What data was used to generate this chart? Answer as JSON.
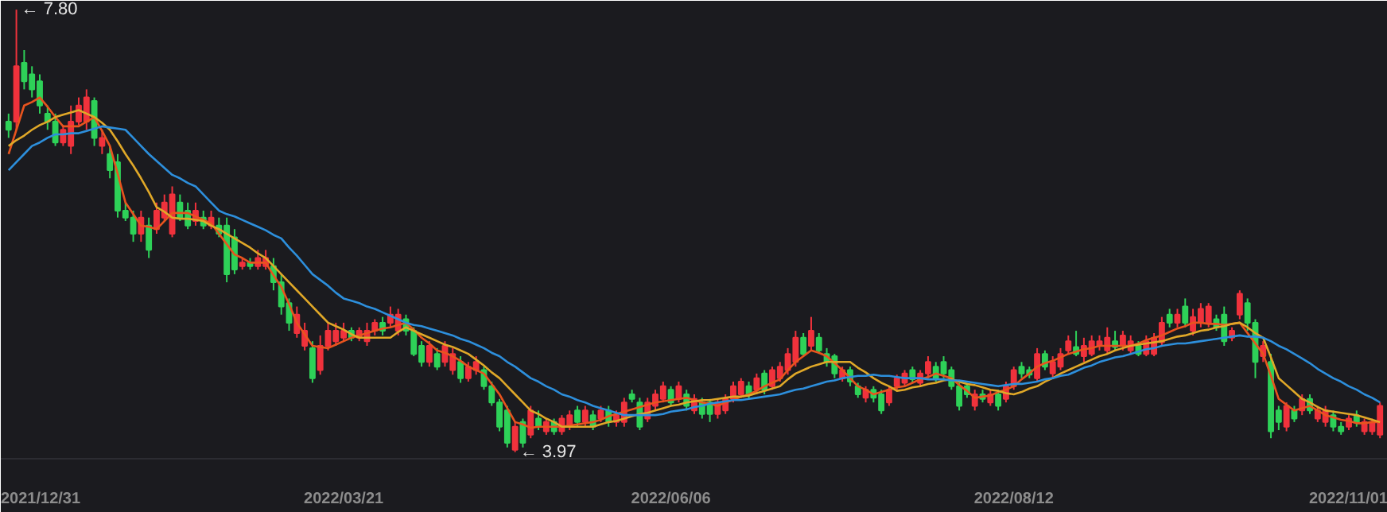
{
  "chart_data": {
    "type": "candlestick",
    "categories": [
      null,
      null,
      null,
      null,
      "2021/12/31",
      null,
      null,
      null,
      null,
      null,
      null,
      null,
      null,
      null,
      null,
      null,
      null,
      null,
      null,
      null,
      null,
      null,
      null,
      null,
      null,
      null,
      null,
      null,
      null,
      null,
      null,
      null,
      null,
      null,
      null,
      null,
      null,
      null,
      null,
      null,
      null,
      null,
      null,
      "2022/03/21",
      null,
      null,
      null,
      null,
      null,
      null,
      null,
      null,
      null,
      null,
      null,
      null,
      null,
      null,
      null,
      null,
      null,
      null,
      null,
      null,
      null,
      null,
      null,
      null,
      null,
      null,
      null,
      null,
      null,
      null,
      null,
      null,
      null,
      null,
      null,
      null,
      null,
      null,
      null,
      null,
      null,
      "2022/06/06",
      null,
      null,
      null,
      null,
      null,
      null,
      null,
      null,
      null,
      null,
      null,
      null,
      null,
      null,
      null,
      null,
      null,
      null,
      null,
      null,
      null,
      null,
      null,
      null,
      null,
      null,
      null,
      null,
      null,
      null,
      null,
      null,
      null,
      null,
      null,
      null,
      null,
      null,
      null,
      null,
      null,
      null,
      null,
      "2022/08/12",
      null,
      null,
      null,
      null,
      null,
      null,
      null,
      null,
      null,
      null,
      null,
      null,
      null,
      null,
      null,
      null,
      null,
      null,
      null,
      null,
      null,
      null,
      null,
      null,
      null,
      null,
      null,
      null,
      null,
      null,
      null,
      null,
      null,
      null,
      null,
      null,
      null,
      null,
      null,
      null,
      null,
      null,
      "2022/11/01",
      null,
      null,
      null,
      null
    ],
    "ohlc": [
      [
        6.83,
        6.9,
        6.69,
        6.76
      ],
      [
        6.83,
        7.8,
        6.76,
        7.31
      ],
      [
        7.34,
        7.45,
        7.11,
        7.18
      ],
      [
        7.24,
        7.31,
        7.04,
        7.11
      ],
      [
        7.18,
        7.24,
        6.9,
        6.97
      ],
      [
        6.9,
        6.97,
        6.76,
        6.83
      ],
      [
        6.83,
        6.9,
        6.62,
        6.65
      ],
      [
        6.65,
        6.8,
        6.62,
        6.76
      ],
      [
        6.62,
        6.97,
        6.55,
        6.83
      ],
      [
        6.83,
        7.04,
        6.8,
        6.97
      ],
      [
        6.83,
        7.11,
        6.76,
        7.04
      ],
      [
        7.01,
        7.04,
        6.62,
        6.69
      ],
      [
        6.62,
        6.76,
        6.55,
        6.69
      ],
      [
        6.55,
        6.62,
        6.34,
        6.41
      ],
      [
        6.48,
        6.55,
        6.0,
        6.06
      ],
      [
        6.06,
        6.13,
        5.97,
        6.0
      ],
      [
        6.0,
        6.06,
        5.79,
        5.86
      ],
      [
        5.86,
        6.06,
        5.79,
        6.0
      ],
      [
        5.93,
        6.0,
        5.65,
        5.72
      ],
      [
        5.9,
        6.13,
        5.86,
        6.06
      ],
      [
        6.0,
        6.2,
        5.97,
        6.13
      ],
      [
        5.86,
        6.27,
        5.83,
        6.2
      ],
      [
        6.13,
        6.2,
        5.97,
        6.0
      ],
      [
        6.06,
        6.13,
        5.9,
        5.93
      ],
      [
        5.97,
        6.13,
        5.93,
        6.06
      ],
      [
        6.0,
        6.06,
        5.9,
        5.93
      ],
      [
        5.93,
        6.06,
        5.9,
        6.0
      ],
      [
        5.93,
        6.0,
        5.83,
        5.86
      ],
      [
        5.93,
        6.0,
        5.44,
        5.51
      ],
      [
        5.83,
        5.9,
        5.51,
        5.55
      ],
      [
        5.58,
        5.65,
        5.55,
        5.61
      ],
      [
        5.61,
        5.65,
        5.55,
        5.58
      ],
      [
        5.58,
        5.72,
        5.55,
        5.65
      ],
      [
        5.58,
        5.72,
        5.55,
        5.65
      ],
      [
        5.58,
        5.65,
        5.37,
        5.44
      ],
      [
        5.44,
        5.51,
        5.16,
        5.23
      ],
      [
        5.26,
        5.3,
        5.02,
        5.09
      ],
      [
        5.0,
        5.23,
        4.96,
        5.16
      ],
      [
        4.89,
        5.09,
        4.85,
        5.02
      ],
      [
        4.87,
        4.93,
        4.57,
        4.61
      ],
      [
        4.68,
        4.98,
        4.64,
        4.89
      ],
      [
        4.89,
        5.09,
        4.85,
        5.02
      ],
      [
        4.93,
        5.09,
        4.89,
        5.02
      ],
      [
        4.96,
        5.09,
        4.93,
        5.02
      ],
      [
        5.02,
        5.05,
        4.93,
        4.96
      ],
      [
        4.96,
        5.05,
        4.93,
        5.02
      ],
      [
        4.93,
        5.09,
        4.89,
        5.02
      ],
      [
        5.02,
        5.12,
        4.98,
        5.09
      ],
      [
        5.09,
        5.14,
        4.98,
        5.02
      ],
      [
        5.09,
        5.23,
        5.05,
        5.16
      ],
      [
        5.02,
        5.21,
        4.98,
        5.16
      ],
      [
        5.12,
        5.16,
        4.98,
        5.02
      ],
      [
        5.02,
        5.05,
        4.8,
        4.82
      ],
      [
        4.89,
        4.93,
        4.71,
        4.75
      ],
      [
        4.75,
        4.93,
        4.71,
        4.89
      ],
      [
        4.82,
        4.87,
        4.68,
        4.71
      ],
      [
        4.75,
        4.93,
        4.71,
        4.89
      ],
      [
        4.68,
        4.87,
        4.64,
        4.82
      ],
      [
        4.75,
        4.8,
        4.57,
        4.61
      ],
      [
        4.61,
        4.75,
        4.58,
        4.71
      ],
      [
        4.68,
        4.8,
        4.64,
        4.75
      ],
      [
        4.68,
        4.71,
        4.51,
        4.54
      ],
      [
        4.54,
        4.58,
        4.37,
        4.4
      ],
      [
        4.4,
        4.43,
        4.15,
        4.19
      ],
      [
        4.33,
        4.37,
        4.01,
        4.05
      ],
      [
        3.99,
        4.23,
        3.97,
        4.19
      ],
      [
        4.23,
        4.26,
        4.01,
        4.05
      ],
      [
        4.12,
        4.37,
        4.09,
        4.33
      ],
      [
        4.26,
        4.33,
        4.16,
        4.19
      ],
      [
        4.15,
        4.26,
        4.12,
        4.23
      ],
      [
        4.23,
        4.26,
        4.12,
        4.15
      ],
      [
        4.15,
        4.29,
        4.12,
        4.26
      ],
      [
        4.19,
        4.33,
        4.16,
        4.29
      ],
      [
        4.33,
        4.37,
        4.19,
        4.23
      ],
      [
        4.23,
        4.37,
        4.19,
        4.33
      ],
      [
        4.29,
        4.33,
        4.16,
        4.19
      ],
      [
        4.26,
        4.37,
        4.23,
        4.33
      ],
      [
        4.33,
        4.37,
        4.19,
        4.23
      ],
      [
        4.23,
        4.33,
        4.19,
        4.29
      ],
      [
        4.23,
        4.44,
        4.19,
        4.4
      ],
      [
        4.47,
        4.51,
        4.4,
        4.43
      ],
      [
        4.4,
        4.44,
        4.16,
        4.19
      ],
      [
        4.26,
        4.44,
        4.23,
        4.4
      ],
      [
        4.37,
        4.51,
        4.33,
        4.47
      ],
      [
        4.43,
        4.58,
        4.4,
        4.54
      ],
      [
        4.51,
        4.54,
        4.37,
        4.4
      ],
      [
        4.43,
        4.58,
        4.4,
        4.54
      ],
      [
        4.47,
        4.51,
        4.33,
        4.37
      ],
      [
        4.33,
        4.47,
        4.3,
        4.43
      ],
      [
        4.4,
        4.44,
        4.26,
        4.3
      ],
      [
        4.4,
        4.43,
        4.23,
        4.3
      ],
      [
        4.3,
        4.43,
        4.26,
        4.4
      ],
      [
        4.33,
        4.47,
        4.3,
        4.43
      ],
      [
        4.43,
        4.58,
        4.4,
        4.54
      ],
      [
        4.47,
        4.61,
        4.44,
        4.58
      ],
      [
        4.54,
        4.58,
        4.43,
        4.47
      ],
      [
        4.51,
        4.65,
        4.47,
        4.61
      ],
      [
        4.65,
        4.68,
        4.47,
        4.51
      ],
      [
        4.54,
        4.71,
        4.51,
        4.68
      ],
      [
        4.61,
        4.75,
        4.58,
        4.71
      ],
      [
        4.68,
        4.87,
        4.64,
        4.82
      ],
      [
        4.75,
        5.02,
        4.71,
        4.96
      ],
      [
        4.96,
        5.0,
        4.8,
        4.82
      ],
      [
        4.89,
        5.14,
        4.85,
        5.02
      ],
      [
        4.96,
        5.0,
        4.82,
        4.85
      ],
      [
        4.82,
        4.87,
        4.71,
        4.75
      ],
      [
        4.8,
        4.82,
        4.61,
        4.65
      ],
      [
        4.61,
        4.71,
        4.58,
        4.68
      ],
      [
        4.68,
        4.71,
        4.54,
        4.58
      ],
      [
        4.54,
        4.57,
        4.44,
        4.47
      ],
      [
        4.44,
        4.54,
        4.4,
        4.51
      ],
      [
        4.51,
        4.54,
        4.4,
        4.44
      ],
      [
        4.47,
        4.51,
        4.3,
        4.33
      ],
      [
        4.4,
        4.54,
        4.37,
        4.51
      ],
      [
        4.54,
        4.64,
        4.51,
        4.61
      ],
      [
        4.57,
        4.68,
        4.54,
        4.65
      ],
      [
        4.68,
        4.71,
        4.57,
        4.6
      ],
      [
        4.57,
        4.68,
        4.54,
        4.65
      ],
      [
        4.65,
        4.8,
        4.61,
        4.75
      ],
      [
        4.71,
        4.75,
        4.58,
        4.61
      ],
      [
        4.75,
        4.8,
        4.61,
        4.65
      ],
      [
        4.68,
        4.71,
        4.51,
        4.54
      ],
      [
        4.54,
        4.57,
        4.33,
        4.37
      ],
      [
        4.54,
        4.57,
        4.44,
        4.47
      ],
      [
        4.37,
        4.51,
        4.33,
        4.47
      ],
      [
        4.47,
        4.51,
        4.4,
        4.43
      ],
      [
        4.4,
        4.51,
        4.37,
        4.47
      ],
      [
        4.47,
        4.51,
        4.33,
        4.37
      ],
      [
        4.43,
        4.58,
        4.4,
        4.54
      ],
      [
        4.54,
        4.71,
        4.51,
        4.68
      ],
      [
        4.71,
        4.75,
        4.61,
        4.65
      ],
      [
        4.68,
        4.71,
        4.61,
        4.64
      ],
      [
        4.61,
        4.87,
        4.58,
        4.82
      ],
      [
        4.82,
        4.85,
        4.68,
        4.71
      ],
      [
        4.65,
        4.8,
        4.61,
        4.75
      ],
      [
        4.71,
        4.87,
        4.68,
        4.82
      ],
      [
        4.85,
        4.98,
        4.82,
        4.93
      ],
      [
        4.88,
        5.02,
        4.8,
        4.82
      ],
      [
        4.8,
        4.96,
        4.75,
        4.89
      ],
      [
        4.82,
        4.98,
        4.8,
        4.93
      ],
      [
        4.89,
        4.98,
        4.85,
        4.93
      ],
      [
        4.85,
        5.05,
        4.82,
        4.96
      ],
      [
        4.93,
        5.02,
        4.85,
        4.88
      ],
      [
        4.89,
        5.02,
        4.85,
        4.98
      ],
      [
        4.85,
        4.98,
        4.82,
        4.93
      ],
      [
        4.89,
        4.93,
        4.8,
        4.82
      ],
      [
        4.82,
        4.98,
        4.8,
        4.93
      ],
      [
        4.82,
        5.0,
        4.8,
        4.96
      ],
      [
        4.92,
        5.14,
        4.89,
        5.09
      ],
      [
        5.16,
        5.21,
        5.05,
        5.09
      ],
      [
        5.09,
        5.21,
        5.05,
        5.16
      ],
      [
        5.23,
        5.3,
        5.05,
        5.09
      ],
      [
        5.02,
        5.21,
        4.98,
        5.14
      ],
      [
        5.09,
        5.26,
        5.05,
        5.21
      ],
      [
        5.09,
        5.26,
        5.05,
        5.23
      ],
      [
        5.12,
        5.16,
        5.02,
        5.05
      ],
      [
        5.16,
        5.23,
        4.89,
        4.93
      ],
      [
        4.96,
        5.05,
        4.93,
        5.02
      ],
      [
        5.16,
        5.37,
        5.12,
        5.34
      ],
      [
        5.26,
        5.3,
        5.02,
        5.09
      ],
      [
        5.09,
        5.12,
        4.61,
        4.75
      ],
      [
        4.8,
        4.93,
        4.75,
        4.89
      ],
      [
        4.75,
        4.82,
        4.09,
        4.15
      ],
      [
        4.33,
        4.37,
        4.16,
        4.23
      ],
      [
        4.19,
        4.4,
        4.15,
        4.37
      ],
      [
        4.33,
        4.37,
        4.23,
        4.26
      ],
      [
        4.33,
        4.47,
        4.29,
        4.43
      ],
      [
        4.43,
        4.47,
        4.3,
        4.33
      ],
      [
        4.26,
        4.37,
        4.23,
        4.33
      ],
      [
        4.23,
        4.37,
        4.19,
        4.33
      ],
      [
        4.29,
        4.33,
        4.15,
        4.19
      ],
      [
        4.19,
        4.23,
        4.12,
        4.15
      ],
      [
        4.19,
        4.29,
        4.16,
        4.26
      ],
      [
        4.29,
        4.33,
        4.19,
        4.23
      ],
      [
        4.15,
        4.26,
        4.12,
        4.23
      ],
      [
        4.15,
        4.26,
        4.12,
        4.23
      ],
      [
        4.12,
        4.4,
        4.09,
        4.37
      ]
    ],
    "tick_labels": "x",
    "series": [
      {
        "type": "line",
        "color": "#e8541e",
        "values": [
          6.55,
          6.76,
          6.97,
          7.0,
          7.04,
          6.96,
          6.87,
          6.79,
          6.79,
          6.79,
          6.83,
          6.87,
          6.75,
          6.62,
          6.38,
          6.13,
          6.03,
          5.93,
          5.92,
          5.9,
          5.97,
          6.04,
          6.04,
          6.04,
          6.01,
          5.98,
          5.95,
          5.86,
          5.77,
          5.68,
          5.65,
          5.61,
          5.61,
          5.61,
          5.5,
          5.4,
          5.25,
          5.09,
          4.99,
          4.89,
          4.88,
          4.87,
          4.9,
          4.93,
          4.96,
          4.98,
          5.0,
          5.02,
          5.04,
          5.05,
          5.07,
          5.09,
          5.03,
          4.96,
          4.91,
          4.85,
          4.83,
          4.8,
          4.76,
          4.71,
          4.68,
          4.65,
          4.56,
          4.47,
          4.35,
          4.23,
          4.21,
          4.18,
          4.19,
          4.19,
          4.19,
          4.19,
          4.2,
          4.21,
          4.22,
          4.23,
          4.25,
          4.28,
          4.3,
          4.32,
          4.34,
          4.36,
          4.38,
          4.4,
          4.41,
          4.42,
          4.43,
          4.44,
          4.42,
          4.4,
          4.39,
          4.37,
          4.4,
          4.42,
          4.45,
          4.47,
          4.5,
          4.54,
          4.57,
          4.6,
          4.68,
          4.75,
          4.8,
          4.85,
          4.83,
          4.8,
          4.74,
          4.68,
          4.61,
          4.54,
          4.51,
          4.47,
          4.49,
          4.51,
          4.53,
          4.54,
          4.57,
          4.6,
          4.62,
          4.65,
          4.63,
          4.61,
          4.55,
          4.5,
          4.44,
          4.45,
          4.46,
          4.49,
          4.51,
          4.54,
          4.6,
          4.65,
          4.71,
          4.74,
          4.76,
          4.79,
          4.82,
          4.84,
          4.86,
          4.87,
          4.89,
          4.89,
          4.89,
          4.89,
          4.89,
          4.91,
          4.94,
          4.96,
          4.98,
          5.01,
          5.04,
          5.06,
          5.09,
          5.09,
          5.08,
          5.08,
          5.07,
          5.08,
          5.09,
          5.0,
          4.91,
          4.82,
          4.63,
          4.43,
          4.38,
          4.33,
          4.35,
          4.37,
          4.33,
          4.29,
          4.27,
          4.25,
          4.24,
          4.22,
          4.22,
          4.23,
          4.23
        ]
      },
      {
        "type": "line",
        "color": "#e0a828",
        "values": [
          6.62,
          6.67,
          6.71,
          6.76,
          6.8,
          6.83,
          6.87,
          6.89,
          6.91,
          6.93,
          6.9,
          6.87,
          6.82,
          6.76,
          6.66,
          6.55,
          6.45,
          6.34,
          6.22,
          6.09,
          6.05,
          6.0,
          5.99,
          5.99,
          5.98,
          5.97,
          5.93,
          5.9,
          5.86,
          5.82,
          5.78,
          5.74,
          5.69,
          5.65,
          5.58,
          5.51,
          5.44,
          5.37,
          5.3,
          5.23,
          5.16,
          5.09,
          5.06,
          5.03,
          4.99,
          4.96,
          4.96,
          4.96,
          4.96,
          4.96,
          5.01,
          5.05,
          5.02,
          4.99,
          4.96,
          4.93,
          4.9,
          4.88,
          4.85,
          4.82,
          4.77,
          4.72,
          4.66,
          4.61,
          4.54,
          4.47,
          4.4,
          4.33,
          4.3,
          4.26,
          4.23,
          4.19,
          4.19,
          4.19,
          4.19,
          4.19,
          4.21,
          4.23,
          4.24,
          4.26,
          4.28,
          4.3,
          4.31,
          4.33,
          4.35,
          4.37,
          4.38,
          4.4,
          4.41,
          4.42,
          4.42,
          4.43,
          4.44,
          4.45,
          4.45,
          4.46,
          4.48,
          4.5,
          4.52,
          4.54,
          4.6,
          4.65,
          4.68,
          4.71,
          4.73,
          4.75,
          4.75,
          4.75,
          4.75,
          4.7,
          4.66,
          4.61,
          4.57,
          4.54,
          4.5,
          4.51,
          4.53,
          4.54,
          4.56,
          4.57,
          4.59,
          4.6,
          4.58,
          4.56,
          4.55,
          4.53,
          4.51,
          4.5,
          4.48,
          4.47,
          4.49,
          4.52,
          4.54,
          4.58,
          4.61,
          4.65,
          4.68,
          4.71,
          4.74,
          4.77,
          4.8,
          4.82,
          4.85,
          4.87,
          4.89,
          4.9,
          4.91,
          4.92,
          4.93,
          4.95,
          4.97,
          4.98,
          5.0,
          5.02,
          5.03,
          5.05,
          5.06,
          5.08,
          5.09,
          5.05,
          5.0,
          4.96,
          4.79,
          4.61,
          4.55,
          4.49,
          4.43,
          4.4,
          4.36,
          4.33,
          4.32,
          4.31,
          4.3,
          4.29,
          4.27,
          4.25,
          4.23
        ]
      },
      {
        "type": "line",
        "color": "#2d8fdc",
        "values": [
          6.41,
          6.48,
          6.55,
          6.62,
          6.65,
          6.69,
          6.72,
          6.72,
          6.73,
          6.73,
          6.75,
          6.77,
          6.79,
          6.78,
          6.77,
          6.76,
          6.69,
          6.62,
          6.55,
          6.49,
          6.43,
          6.37,
          6.34,
          6.3,
          6.27,
          6.2,
          6.13,
          6.06,
          6.03,
          6.01,
          5.98,
          5.95,
          5.92,
          5.89,
          5.85,
          5.82,
          5.74,
          5.67,
          5.59,
          5.51,
          5.46,
          5.41,
          5.35,
          5.3,
          5.28,
          5.26,
          5.23,
          5.21,
          5.18,
          5.15,
          5.12,
          5.09,
          5.07,
          5.06,
          5.04,
          5.02,
          5.0,
          4.98,
          4.95,
          4.93,
          4.9,
          4.87,
          4.83,
          4.8,
          4.75,
          4.71,
          4.66,
          4.61,
          4.58,
          4.54,
          4.51,
          4.47,
          4.45,
          4.42,
          4.4,
          4.37,
          4.35,
          4.33,
          4.31,
          4.29,
          4.29,
          4.29,
          4.29,
          4.29,
          4.3,
          4.32,
          4.33,
          4.34,
          4.36,
          4.37,
          4.39,
          4.4,
          4.41,
          4.42,
          4.42,
          4.43,
          4.44,
          4.45,
          4.46,
          4.47,
          4.49,
          4.51,
          4.52,
          4.54,
          4.56,
          4.58,
          4.59,
          4.61,
          4.62,
          4.63,
          4.63,
          4.64,
          4.63,
          4.63,
          4.62,
          4.61,
          4.61,
          4.61,
          4.6,
          4.6,
          4.6,
          4.59,
          4.59,
          4.58,
          4.57,
          4.56,
          4.55,
          4.54,
          4.55,
          4.56,
          4.56,
          4.57,
          4.58,
          4.6,
          4.61,
          4.63,
          4.64,
          4.67,
          4.7,
          4.72,
          4.75,
          4.77,
          4.79,
          4.8,
          4.82,
          4.84,
          4.86,
          4.87,
          4.89,
          4.9,
          4.91,
          4.91,
          4.92,
          4.93,
          4.94,
          4.95,
          4.96,
          4.97,
          4.98,
          4.97,
          4.97,
          4.96,
          4.93,
          4.89,
          4.86,
          4.82,
          4.78,
          4.74,
          4.69,
          4.65,
          4.61,
          4.58,
          4.54,
          4.51,
          4.47,
          4.44,
          4.4
        ]
      }
    ],
    "annotations": [
      "← 7.80",
      "← 3.97"
    ]
  }
}
